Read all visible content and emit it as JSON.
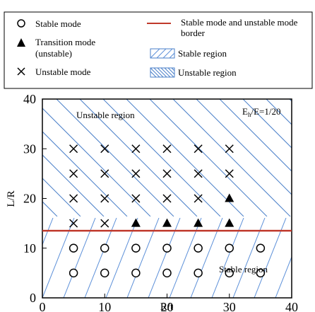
{
  "legend": {
    "stable_mode": "Stable mode",
    "transition_mode_line1": "Transition mode",
    "transition_mode_line2": "(unstable)",
    "unstable_mode": "Unstable mode",
    "border_line1": "Stable mode and unstable mode",
    "border_line2": "border",
    "stable_region": "Stable region",
    "unstable_region": "Unstable region"
  },
  "chart_data": {
    "type": "scatter",
    "xlabel": "R/t",
    "ylabel": "L/R",
    "xlim": [
      0,
      40
    ],
    "ylim": [
      0,
      40
    ],
    "x_ticks": [
      0,
      10,
      20,
      30,
      40
    ],
    "y_ticks": [
      0,
      10,
      20,
      30,
      40
    ],
    "grid": false,
    "border_y": 13.5,
    "annotations": {
      "unstable_region_label": "Unstable region",
      "stable_region_label": "Stable region",
      "ratio_prefix": "E",
      "ratio_sub": "h",
      "ratio_suffix": "/E=1/20"
    },
    "colors": {
      "border_line": "#c0392b",
      "stable_hatch": "#5b8fd8",
      "unstable_hatch": "#4a7fc8"
    },
    "series": [
      {
        "name": "Stable mode",
        "marker": "circle",
        "points": [
          [
            5,
            5
          ],
          [
            10,
            5
          ],
          [
            15,
            5
          ],
          [
            20,
            5
          ],
          [
            25,
            5
          ],
          [
            30,
            5
          ],
          [
            35,
            5
          ],
          [
            5,
            10
          ],
          [
            10,
            10
          ],
          [
            15,
            10
          ],
          [
            20,
            10
          ],
          [
            25,
            10
          ],
          [
            30,
            10
          ],
          [
            35,
            10
          ]
        ]
      },
      {
        "name": "Transition mode (unstable)",
        "marker": "triangle",
        "points": [
          [
            15,
            15
          ],
          [
            20,
            15
          ],
          [
            25,
            15
          ],
          [
            30,
            15
          ],
          [
            30,
            20
          ]
        ]
      },
      {
        "name": "Unstable mode",
        "marker": "cross",
        "points": [
          [
            5,
            15
          ],
          [
            10,
            15
          ],
          [
            5,
            20
          ],
          [
            10,
            20
          ],
          [
            15,
            20
          ],
          [
            20,
            20
          ],
          [
            25,
            20
          ],
          [
            5,
            25
          ],
          [
            10,
            25
          ],
          [
            15,
            25
          ],
          [
            20,
            25
          ],
          [
            25,
            25
          ],
          [
            30,
            25
          ],
          [
            5,
            30
          ],
          [
            10,
            30
          ],
          [
            15,
            30
          ],
          [
            20,
            30
          ],
          [
            25,
            30
          ],
          [
            30,
            30
          ]
        ]
      }
    ]
  }
}
